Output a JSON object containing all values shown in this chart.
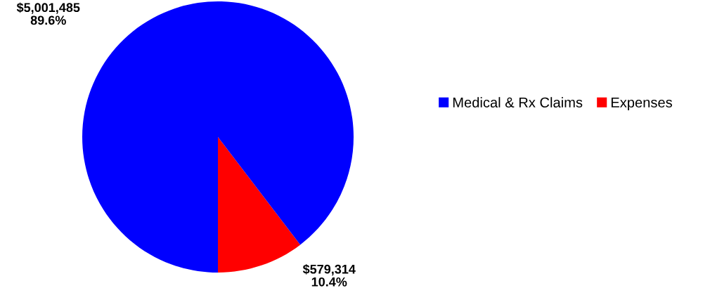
{
  "chart_data": {
    "type": "pie",
    "categories": [
      "Medical & Rx Claims",
      "Expenses"
    ],
    "values": [
      5001485,
      579314
    ],
    "colors": [
      "#0000ff",
      "#ff0000"
    ],
    "value_labels": [
      "$5,001,485\n89.6%",
      "$579,314\n10.4%"
    ],
    "legend": "right"
  }
}
